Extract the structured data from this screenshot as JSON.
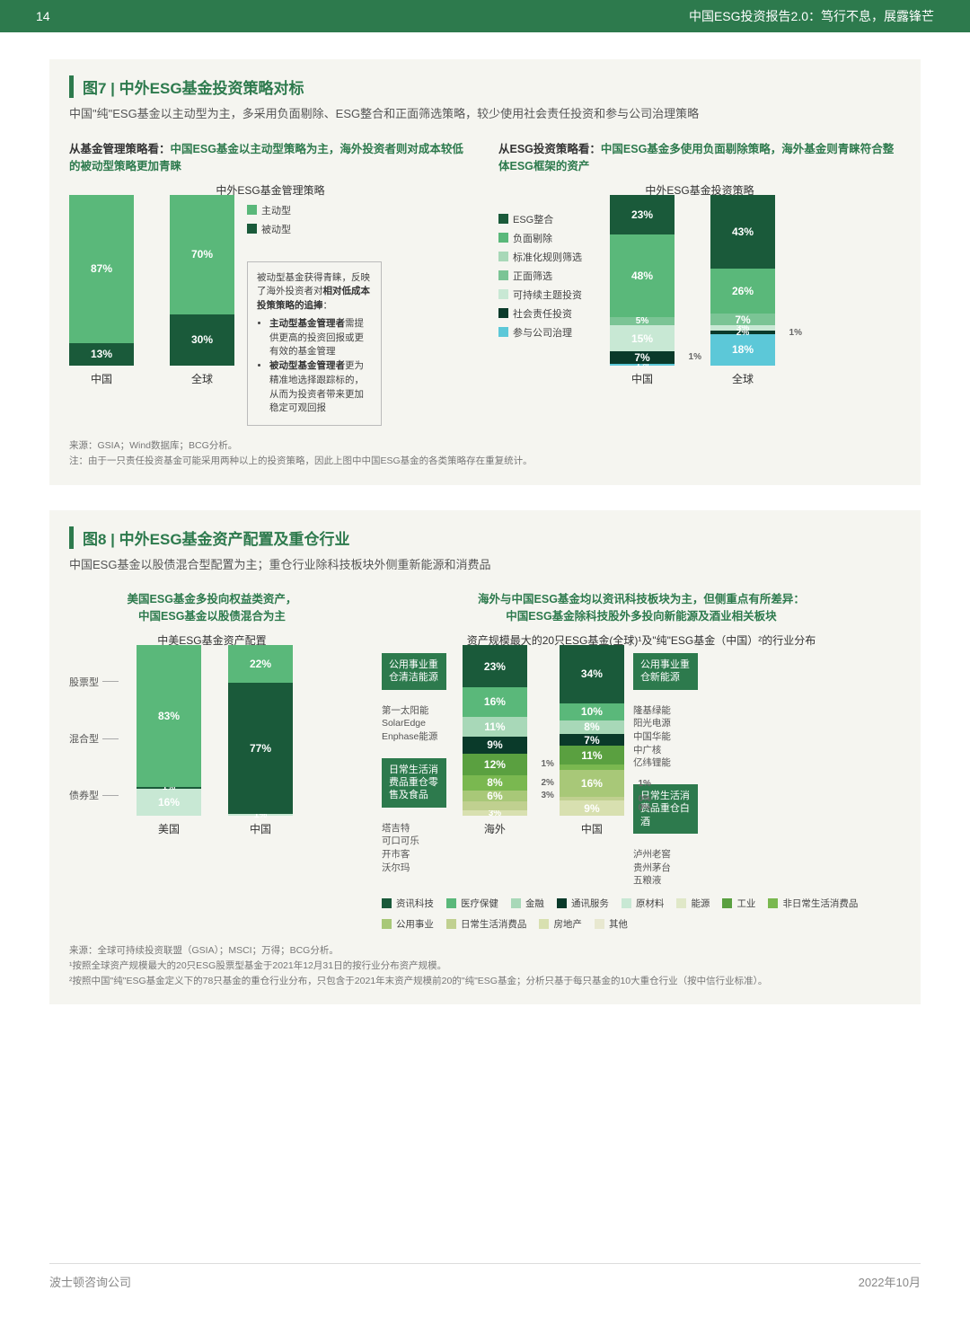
{
  "header": {
    "page_num": "14",
    "doc_title": "中国ESG投资报告2.0：笃行不息，展露锋芒"
  },
  "fig7": {
    "title": "图7 | 中外ESG基金投资策略对标",
    "subtitle": "中国\"纯\"ESG基金以主动型为主，多采用负面剔除、ESG整合和正面筛选策略，较少使用社会责任投资和参与公司治理策略",
    "left": {
      "head_black": "从基金管理策略看：",
      "head_green": "中国ESG基金以主动型策略为主，海外投资者则对成本较低的被动型策略更加青睐",
      "chart_title": "中外ESG基金管理策略",
      "legend": [
        {
          "label": "主动型",
          "color": "#5ab87a"
        },
        {
          "label": "被动型",
          "color": "#1a5a3a"
        }
      ],
      "bars": [
        {
          "label": "中国",
          "segs": [
            {
              "v": 13,
              "t": "13%",
              "c": "#1a5a3a"
            },
            {
              "v": 87,
              "t": "87%",
              "c": "#5ab87a"
            }
          ]
        },
        {
          "label": "全球",
          "segs": [
            {
              "v": 30,
              "t": "30%",
              "c": "#1a5a3a"
            },
            {
              "v": 70,
              "t": "70%",
              "c": "#5ab87a"
            }
          ]
        }
      ],
      "note": {
        "l1": "被动型基金获得青睐，反映了海外投资者对",
        "l1b": "相对低成本投策策略的追捧",
        "b1t": "主动型基金管理者",
        "b1": "需提供更高的投资回报或更有效的基金管理",
        "b2t": "被动型基金管理者",
        "b2": "更为精准地选择跟踪标的，从而为投资者带来更加稳定可观回报"
      }
    },
    "right": {
      "head_black": "从ESG投资策略看：",
      "head_green": "中国ESG基金多使用负面剔除策略，海外基金则青睐符合整体ESG框架的资产",
      "chart_title": "中外ESG基金投资策略",
      "legend": [
        {
          "label": "ESG整合",
          "color": "#1a5a3a"
        },
        {
          "label": "负面剔除",
          "color": "#5ab87a"
        },
        {
          "label": "标准化规则筛选",
          "color": "#a8d8b8"
        },
        {
          "label": "正面筛选",
          "color": "#7bc495"
        },
        {
          "label": "可持续主题投资",
          "color": "#c8e8d4"
        },
        {
          "label": "社会责任投资",
          "color": "#0a3a2a"
        },
        {
          "label": "参与公司治理",
          "color": "#5cc8d8"
        }
      ],
      "bars": [
        {
          "label": "中国",
          "segs": [
            {
              "v": 1,
              "t": "1%",
              "c": "#5cc8d8",
              "side": ""
            },
            {
              "v": 7,
              "t": "7%",
              "c": "#0a3a2a",
              "side": "1%"
            },
            {
              "v": 15,
              "t": "15%",
              "c": "#c8e8d4"
            },
            {
              "v": 5,
              "t": "5%",
              "c": "#7bc495"
            },
            {
              "v": 48,
              "t": "48%",
              "c": "#5ab87a"
            },
            {
              "v": 23,
              "t": "23%",
              "c": "#1a5a3a"
            }
          ]
        },
        {
          "label": "全球",
          "segs": [
            {
              "v": 18,
              "t": "18%",
              "c": "#5cc8d8"
            },
            {
              "v": 2,
              "t": "2%",
              "c": "#0a3a2a",
              "side": "1%"
            },
            {
              "v": 3,
              "t": "3%",
              "c": "#c8e8d4"
            },
            {
              "v": 7,
              "t": "7%",
              "c": "#7bc495"
            },
            {
              "v": 26,
              "t": "26%",
              "c": "#5ab87a"
            },
            {
              "v": 43,
              "t": "43%",
              "c": "#1a5a3a"
            }
          ]
        }
      ]
    },
    "source": "来源：GSIA；Wind数据库；BCG分析。",
    "note": "注：由于一只责任投资基金可能采用两种以上的投资策略，因此上图中中国ESG基金的各类策略存在重复统计。"
  },
  "fig8": {
    "title": "图8 | 中外ESG基金资产配置及重仓行业",
    "subtitle": "中国ESG基金以股债混合型配置为主；重仓行业除科技板块外侧重新能源和消费品",
    "left": {
      "head_black": "美国ESG基金多投向权益类资产，",
      "head_green": "中国ESG基金以股债混合为主",
      "chart_title": "中美ESG基金资产配置",
      "cats": [
        "股票型",
        "混合型",
        "债券型"
      ],
      "bars": [
        {
          "label": "美国",
          "segs": [
            {
              "v": 16,
              "t": "16%",
              "c": "#c8e8d4"
            },
            {
              "v": 1,
              "t": "1%",
              "c": "#1a5a3a"
            },
            {
              "v": 83,
              "t": "83%",
              "c": "#5ab87a"
            }
          ]
        },
        {
          "label": "中国",
          "segs": [
            {
              "v": 1,
              "t": "1%",
              "c": "#c8e8d4",
              "side": ""
            },
            {
              "v": 77,
              "t": "77%",
              "c": "#1a5a3a"
            },
            {
              "v": 22,
              "t": "22%",
              "c": "#5ab87a"
            }
          ]
        }
      ]
    },
    "right": {
      "head_black": "海外与中国ESG基金均以资讯科技板块为主，但侧重点有所差异：",
      "head_green": "中国ESG基金除科技股外多投向新能源及酒业相关板块",
      "chart_title": "资产规模最大的20只ESG基金(全球)¹及\"纯\"ESG基金（中国）²的行业分布",
      "callout_left": {
        "t1": "公用事业重仓清洁能源",
        "items": "第一太阳能\nSolarEdge\nEnphase能源",
        "t2": "日常生活消费品重仓零售及食品",
        "items2": "塔吉特\n可口可乐\n开市客\n沃尔玛"
      },
      "callout_right": {
        "t1": "公用事业重仓新能源",
        "items": "隆基绿能\n阳光电源\n中国华能\n中广核\n亿纬锂能",
        "t2": "日常生活消费品重仓白酒",
        "items2": "泸州老窖\n贵州茅台\n五粮液"
      },
      "bars": [
        {
          "label": "海外",
          "segs": [
            {
              "v": 3,
              "t": "3%",
              "c": "#d8e0b0"
            },
            {
              "v": 5,
              "t": "",
              "c": "#c0d090"
            },
            {
              "v": 6,
              "t": "6%",
              "c": "#a8c878",
              "side": "3%"
            },
            {
              "v": 8,
              "t": "8%",
              "c": "#7ab850",
              "side": "2%"
            },
            {
              "v": 12,
              "t": "12%",
              "c": "#5aa040",
              "side": "1%"
            },
            {
              "v": 9,
              "t": "9%",
              "c": "#0a3a2a"
            },
            {
              "v": 11,
              "t": "11%",
              "c": "#a8d8b8"
            },
            {
              "v": 16,
              "t": "16%",
              "c": "#5ab87a"
            },
            {
              "v": 23,
              "t": "23%",
              "c": "#1a5a3a"
            }
          ]
        },
        {
          "label": "中国",
          "segs": [
            {
              "v": 9,
              "t": "9%",
              "c": "#d8e0b0",
              "side": "0%"
            },
            {
              "v": 2,
              "t": "",
              "c": "#c0d090",
              "side": "0%"
            },
            {
              "v": 16,
              "t": "16%",
              "c": "#a8c878",
              "side": "1%"
            },
            {
              "v": 3,
              "t": "",
              "c": "#7ab850"
            },
            {
              "v": 11,
              "t": "11%",
              "c": "#5aa040"
            },
            {
              "v": 7,
              "t": "7%",
              "c": "#0a3a2a"
            },
            {
              "v": 8,
              "t": "8%",
              "c": "#a8d8b8"
            },
            {
              "v": 10,
              "t": "10%",
              "c": "#5ab87a"
            },
            {
              "v": 34,
              "t": "34%",
              "c": "#1a5a3a"
            }
          ]
        }
      ],
      "legend": [
        {
          "label": "资讯科技",
          "color": "#1a5a3a"
        },
        {
          "label": "医疗保健",
          "color": "#5ab87a"
        },
        {
          "label": "金融",
          "color": "#a8d8b8"
        },
        {
          "label": "通讯服务",
          "color": "#0a3a2a"
        },
        {
          "label": "原材料",
          "color": "#c8e8d4"
        },
        {
          "label": "能源",
          "color": "#e0e8c8"
        },
        {
          "label": "工业",
          "color": "#5aa040"
        },
        {
          "label": "非日常生活消费品",
          "color": "#7ab850"
        },
        {
          "label": "公用事业",
          "color": "#a8c878"
        },
        {
          "label": "日常生活消费品",
          "color": "#c0d090"
        },
        {
          "label": "房地产",
          "color": "#d8e0b0"
        },
        {
          "label": "其他",
          "color": "#e8e8d0"
        }
      ]
    },
    "source": "来源：全球可持续投资联盟（GSIA）；MSCI；万得；BCG分析。",
    "fn1": "¹按照全球资产规模最大的20只ESG股票型基金于2021年12月31日的按行业分布资产规模。",
    "fn2": "²按照中国\"纯\"ESG基金定义下的78只基金的重仓行业分布，只包含于2021年末资产规模前20的\"纯\"ESG基金；分析只基于每只基金的10大重仓行业（按中信行业标准）。"
  },
  "footer": {
    "company": "波士顿咨询公司",
    "date": "2022年10月"
  }
}
